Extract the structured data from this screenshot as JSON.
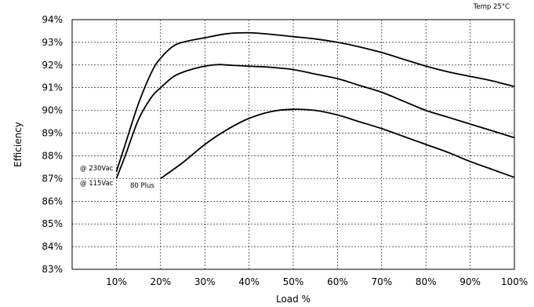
{
  "chart_data": {
    "type": "line",
    "title": "",
    "subtitle": "Temp 25°C",
    "xlabel": "Load %",
    "ylabel": "Efficiency",
    "xlim": [
      0,
      100
    ],
    "ylim": [
      83,
      94
    ],
    "x_ticks": [
      10,
      20,
      30,
      40,
      50,
      60,
      70,
      80,
      90,
      100
    ],
    "x_tick_labels": [
      "10%",
      "20%",
      "30%",
      "40%",
      "50%",
      "60%",
      "70%",
      "80%",
      "90%",
      "100%"
    ],
    "y_ticks": [
      83,
      84,
      85,
      86,
      87,
      88,
      89,
      90,
      91,
      92,
      93,
      94
    ],
    "y_tick_labels": [
      "83%",
      "84%",
      "85%",
      "86%",
      "87%",
      "88%",
      "89%",
      "90%",
      "91%",
      "92%",
      "93%",
      "94%"
    ],
    "grid": true,
    "series": [
      {
        "name": "@ 230Vac",
        "x": [
          10,
          12,
          15,
          18,
          20,
          23,
          26,
          30,
          35,
          40,
          45,
          50,
          55,
          60,
          65,
          70,
          75,
          80,
          85,
          90,
          95,
          100
        ],
        "y": [
          87.3,
          88.5,
          90.3,
          91.7,
          92.3,
          92.85,
          93.05,
          93.2,
          93.38,
          93.42,
          93.35,
          93.25,
          93.15,
          93.0,
          92.8,
          92.55,
          92.25,
          91.95,
          91.7,
          91.5,
          91.3,
          91.05
        ]
      },
      {
        "name": "@ 115Vac",
        "x": [
          10,
          12,
          15,
          18,
          20,
          23,
          26,
          30,
          33,
          35,
          40,
          45,
          50,
          55,
          60,
          65,
          70,
          75,
          80,
          85,
          90,
          95,
          100
        ],
        "y": [
          87.0,
          88.0,
          89.6,
          90.6,
          91.0,
          91.5,
          91.75,
          91.95,
          92.02,
          92.0,
          91.95,
          91.9,
          91.8,
          91.6,
          91.4,
          91.1,
          90.8,
          90.4,
          90.0,
          89.7,
          89.4,
          89.1,
          88.8
        ]
      },
      {
        "name": "80 Plus",
        "x": [
          20,
          25,
          30,
          35,
          40,
          45,
          50,
          55,
          60,
          65,
          70,
          75,
          80,
          85,
          90,
          95,
          100
        ],
        "y": [
          87.0,
          87.7,
          88.5,
          89.15,
          89.65,
          89.95,
          90.05,
          90.0,
          89.8,
          89.5,
          89.2,
          88.85,
          88.5,
          88.15,
          87.75,
          87.4,
          87.05
        ]
      }
    ]
  }
}
